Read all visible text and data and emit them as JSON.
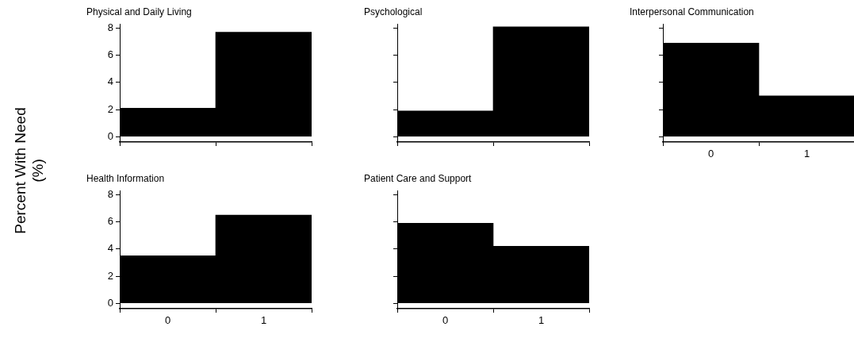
{
  "chart_data": [
    {
      "type": "bar",
      "title": "Physical and Daily Living",
      "ylabel": "Percent With Need (%)",
      "categories": [
        "0",
        "1"
      ],
      "values": [
        2.1,
        7.7
      ],
      "color": "#000000",
      "ylim": [
        -0.4,
        8.3
      ],
      "yticks": [
        0,
        2,
        4,
        6,
        8
      ],
      "tick_labels": "y",
      "grid": false,
      "legend": false
    },
    {
      "type": "bar",
      "title": "Psychological",
      "categories": [
        "0",
        "1"
      ],
      "values": [
        1.9,
        8.1
      ],
      "color": "#000000",
      "ylim": [
        -0.4,
        8.3
      ],
      "yticks": [
        0,
        2,
        4,
        6,
        8
      ],
      "tick_labels": false,
      "grid": false,
      "legend": false
    },
    {
      "type": "bar",
      "title": "Interpersonal Communication",
      "categories": [
        "0",
        "1"
      ],
      "values": [
        6.9,
        3.0
      ],
      "color": "#000000",
      "ylim": [
        -0.4,
        8.3
      ],
      "yticks": [
        0,
        2,
        4,
        6,
        8
      ],
      "tick_labels": "x",
      "grid": false,
      "legend": false
    },
    {
      "type": "bar",
      "title": "Health Information",
      "categories": [
        "0",
        "1"
      ],
      "values": [
        3.5,
        6.5
      ],
      "color": "#000000",
      "ylim": [
        -0.4,
        8.3
      ],
      "yticks": [
        0,
        2,
        4,
        6,
        8
      ],
      "grid": false,
      "legend": false
    },
    {
      "type": "bar",
      "title": "Patient Care and Support",
      "categories": [
        "0",
        "1"
      ],
      "values": [
        5.9,
        4.2
      ],
      "color": "#000000",
      "ylim": [
        -0.4,
        8.3
      ],
      "yticks": [
        0,
        2,
        4,
        6,
        8
      ],
      "tick_labels": "x",
      "grid": false,
      "legend": false
    }
  ]
}
